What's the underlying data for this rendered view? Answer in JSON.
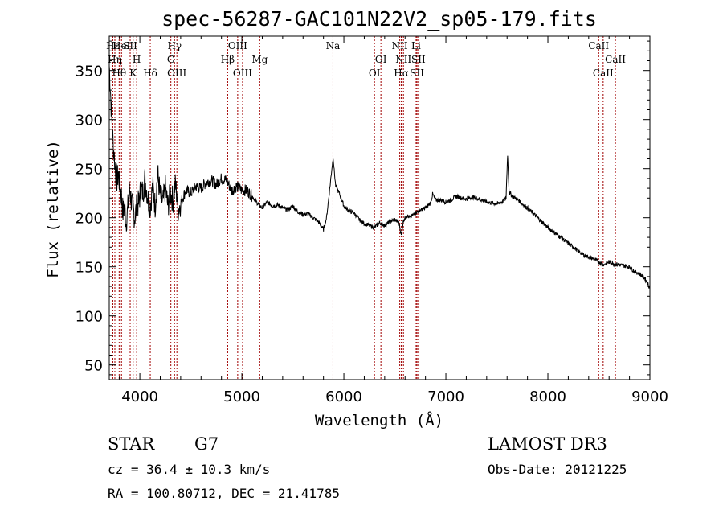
{
  "chart_data": {
    "type": "line",
    "title": "spec-56287-GAC101N22V2_sp05-179.fits",
    "xlabel": "Wavelength (Å)",
    "ylabel": "Flux (relative)",
    "xlim": [
      3700,
      9000
    ],
    "ylim": [
      35,
      385
    ],
    "xticks": [
      4000,
      5000,
      6000,
      7000,
      8000,
      9000
    ],
    "yticks": [
      50,
      100,
      150,
      200,
      250,
      300,
      350
    ],
    "series": [
      {
        "name": "flux",
        "points": [
          [
            3700,
            355
          ],
          [
            3712,
            330
          ],
          [
            3725,
            300
          ],
          [
            3738,
            275
          ],
          [
            3750,
            262
          ],
          [
            3762,
            248
          ],
          [
            3775,
            238
          ],
          [
            3790,
            245
          ],
          [
            3805,
            232
          ],
          [
            3820,
            222
          ],
          [
            3835,
            205
          ],
          [
            3850,
            212
          ],
          [
            3865,
            195
          ],
          [
            3880,
            208
          ],
          [
            3900,
            230
          ],
          [
            3915,
            218
          ],
          [
            3930,
            210
          ],
          [
            3950,
            200
          ],
          [
            3970,
            212
          ],
          [
            3990,
            215
          ],
          [
            4010,
            230
          ],
          [
            4030,
            225
          ],
          [
            4050,
            240
          ],
          [
            4075,
            222
          ],
          [
            4100,
            210
          ],
          [
            4125,
            232
          ],
          [
            4150,
            212
          ],
          [
            4175,
            245
          ],
          [
            4200,
            222
          ],
          [
            4225,
            215
          ],
          [
            4250,
            230
          ],
          [
            4275,
            212
          ],
          [
            4300,
            225
          ],
          [
            4325,
            218
          ],
          [
            4350,
            235
          ],
          [
            4375,
            208
          ],
          [
            4400,
            215
          ],
          [
            4450,
            228
          ],
          [
            4500,
            225
          ],
          [
            4550,
            232
          ],
          [
            4600,
            230
          ],
          [
            4650,
            236
          ],
          [
            4700,
            238
          ],
          [
            4750,
            234
          ],
          [
            4800,
            240
          ],
          [
            4850,
            238
          ],
          [
            4900,
            228
          ],
          [
            4950,
            232
          ],
          [
            5000,
            228
          ],
          [
            5050,
            228
          ],
          [
            5100,
            222
          ],
          [
            5150,
            215
          ],
          [
            5200,
            210
          ],
          [
            5250,
            216
          ],
          [
            5300,
            212
          ],
          [
            5350,
            213
          ],
          [
            5400,
            210
          ],
          [
            5450,
            208
          ],
          [
            5500,
            212
          ],
          [
            5550,
            206
          ],
          [
            5600,
            203
          ],
          [
            5650,
            204
          ],
          [
            5700,
            200
          ],
          [
            5750,
            196
          ],
          [
            5800,
            188
          ],
          [
            5830,
            200
          ],
          [
            5860,
            228
          ],
          [
            5880,
            248
          ],
          [
            5895,
            262
          ],
          [
            5905,
            248
          ],
          [
            5920,
            232
          ],
          [
            5950,
            226
          ],
          [
            5980,
            218
          ],
          [
            6000,
            212
          ],
          [
            6050,
            207
          ],
          [
            6100,
            205
          ],
          [
            6150,
            198
          ],
          [
            6200,
            194
          ],
          [
            6250,
            192
          ],
          [
            6300,
            190
          ],
          [
            6350,
            195
          ],
          [
            6400,
            192
          ],
          [
            6450,
            196
          ],
          [
            6500,
            198
          ],
          [
            6540,
            195
          ],
          [
            6563,
            182
          ],
          [
            6585,
            198
          ],
          [
            6620,
            202
          ],
          [
            6650,
            200
          ],
          [
            6700,
            205
          ],
          [
            6750,
            208
          ],
          [
            6800,
            210
          ],
          [
            6850,
            215
          ],
          [
            6870,
            224
          ],
          [
            6900,
            218
          ],
          [
            6950,
            218
          ],
          [
            7000,
            216
          ],
          [
            7050,
            218
          ],
          [
            7100,
            222
          ],
          [
            7150,
            220
          ],
          [
            7200,
            219
          ],
          [
            7250,
            221
          ],
          [
            7300,
            220
          ],
          [
            7350,
            218
          ],
          [
            7400,
            216
          ],
          [
            7450,
            215
          ],
          [
            7500,
            214
          ],
          [
            7550,
            216
          ],
          [
            7590,
            220
          ],
          [
            7605,
            265
          ],
          [
            7620,
            226
          ],
          [
            7650,
            222
          ],
          [
            7700,
            219
          ],
          [
            7750,
            214
          ],
          [
            7800,
            210
          ],
          [
            7850,
            205
          ],
          [
            7900,
            200
          ],
          [
            7950,
            195
          ],
          [
            8000,
            190
          ],
          [
            8050,
            186
          ],
          [
            8100,
            182
          ],
          [
            8150,
            178
          ],
          [
            8200,
            174
          ],
          [
            8250,
            170
          ],
          [
            8300,
            166
          ],
          [
            8350,
            162
          ],
          [
            8400,
            160
          ],
          [
            8450,
            158
          ],
          [
            8500,
            155
          ],
          [
            8550,
            152
          ],
          [
            8600,
            155
          ],
          [
            8650,
            153
          ],
          [
            8700,
            152
          ],
          [
            8750,
            151
          ],
          [
            8800,
            150
          ],
          [
            8850,
            145
          ],
          [
            8900,
            143
          ],
          [
            8950,
            138
          ],
          [
            8980,
            133
          ],
          [
            9000,
            128
          ]
        ]
      }
    ],
    "spectral_lines": [
      {
        "label": "Hε",
        "x": 3735,
        "row": 1
      },
      {
        "label": "HeI",
        "x": 3820,
        "row": 1
      },
      {
        "label": "SII",
        "x": 3905,
        "row": 1
      },
      {
        "label": "Hγ",
        "x": 4340,
        "row": 1
      },
      {
        "label": "OIII",
        "x": 4959,
        "row": 1
      },
      {
        "label": "Na",
        "x": 5893,
        "row": 1
      },
      {
        "label": "NII",
        "x": 6548,
        "row": 1
      },
      {
        "label": "Li",
        "x": 6708,
        "row": 1
      },
      {
        "label": "CaII",
        "x": 8498,
        "row": 1
      },
      {
        "label": "Hη",
        "x": 3755,
        "row": 2
      },
      {
        "label": "H",
        "x": 3969,
        "row": 2
      },
      {
        "label": "G",
        "x": 4304,
        "row": 2
      },
      {
        "label": "Hβ",
        "x": 4861,
        "row": 2
      },
      {
        "label": "Mg",
        "x": 5175,
        "row": 2
      },
      {
        "label": "OI",
        "x": 6363,
        "row": 2
      },
      {
        "label": "NII",
        "x": 6584,
        "row": 2
      },
      {
        "label": "SII",
        "x": 6731,
        "row": 2
      },
      {
        "label": "CaII",
        "x": 8662,
        "row": 2
      },
      {
        "label": "Hθ",
        "x": 3797,
        "row": 3
      },
      {
        "label": "K",
        "x": 3934,
        "row": 3
      },
      {
        "label": "Hδ",
        "x": 4102,
        "row": 3
      },
      {
        "label": "OIII",
        "x": 4363,
        "row": 3
      },
      {
        "label": "OIII",
        "x": 5007,
        "row": 3
      },
      {
        "label": "OI",
        "x": 6300,
        "row": 3
      },
      {
        "label": "Hα",
        "x": 6563,
        "row": 3
      },
      {
        "label": "SII",
        "x": 6717,
        "row": 3
      },
      {
        "label": "CaII",
        "x": 8542,
        "row": 3
      }
    ]
  },
  "info": {
    "class": "STAR",
    "subclass": "G7",
    "survey": "LAMOST DR3",
    "cz": "cz = 36.4 ± 10.3 km/s",
    "obs_date": "Obs-Date: 20121225",
    "coords": "RA = 100.80712, DEC =  21.41785"
  },
  "colors": {
    "axis": "#000000",
    "trace": "#000000",
    "line_marker": "#a00000"
  }
}
